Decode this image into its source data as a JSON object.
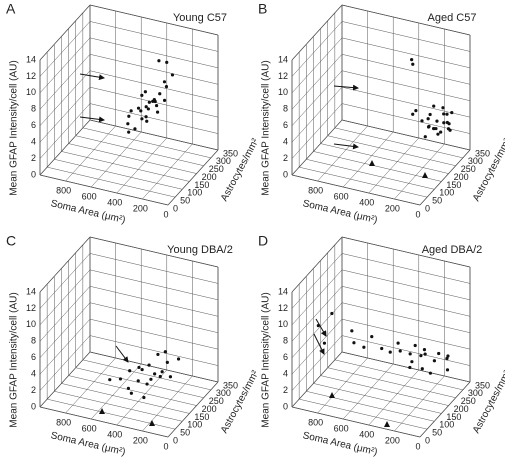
{
  "chart_data": [
    {
      "type": "scatter3d",
      "label": "A",
      "title": "Young C57",
      "xlabel": "Soma Area (μm²)",
      "ylabel": "Astrocytes/mm²",
      "zlabel": "Mean GFAP Intensity/cell (AU)",
      "color": "#111111",
      "xlim": [
        0,
        1000
      ],
      "xticks": [
        0,
        200,
        400,
        600,
        800
      ],
      "ylim": [
        0,
        350
      ],
      "yticks": [
        0,
        50,
        100,
        150,
        200,
        250,
        300,
        350
      ],
      "zlim": [
        0,
        14
      ],
      "zticks": [
        0,
        2,
        4,
        6,
        8,
        10,
        12,
        14
      ],
      "x": [
        350,
        300,
        400,
        320,
        450,
        380,
        300,
        280,
        420,
        360,
        330,
        500,
        260,
        390,
        310,
        440,
        370,
        290,
        410,
        350,
        470,
        340,
        300,
        380,
        430,
        250,
        360
      ],
      "y": [
        250,
        260,
        200,
        180,
        220,
        150,
        120,
        240,
        170,
        140,
        200,
        190,
        160,
        260,
        220,
        120,
        100,
        180,
        230,
        160,
        140,
        280,
        300,
        210,
        110,
        200,
        170
      ],
      "z": [
        11.5,
        11.3,
        8.5,
        8.0,
        7.5,
        7.2,
        6.8,
        8.8,
        7.0,
        6.5,
        7.8,
        6.0,
        7.3,
        6.2,
        8.2,
        6.9,
        6.0,
        7.6,
        5.8,
        6.4,
        5.5,
        8.4,
        9.0,
        7.1,
        5.2,
        8.0,
        7.4
      ]
    },
    {
      "type": "scatter3d",
      "label": "B",
      "title": "Aged C57",
      "xlabel": "Soma Area (μm²)",
      "ylabel": "Astrocytes/mm²",
      "zlabel": "Mean GFAP Intensity/cell (AU)",
      "color": "#111111",
      "xlim": [
        0,
        1000
      ],
      "xticks": [
        0,
        200,
        400,
        600,
        800
      ],
      "ylim": [
        0,
        350
      ],
      "yticks": [
        0,
        50,
        100,
        150,
        200,
        250,
        300,
        350
      ],
      "zlim": [
        0,
        14
      ],
      "zticks": [
        0,
        2,
        4,
        6,
        8,
        10,
        12,
        14
      ],
      "x": [
        400,
        380,
        200,
        150,
        250,
        180,
        220,
        120,
        300,
        160,
        260,
        140,
        200,
        100,
        230,
        170,
        280,
        130,
        210,
        190,
        90,
        240,
        150,
        110,
        260,
        180
      ],
      "y": [
        300,
        290,
        250,
        300,
        320,
        280,
        260,
        330,
        240,
        310,
        290,
        270,
        340,
        300,
        220,
        250,
        200,
        320,
        300,
        230,
        280,
        310,
        260,
        290,
        270,
        350
      ],
      "z": [
        10.5,
        10.2,
        5.5,
        4.8,
        5.0,
        4.2,
        3.8,
        4.5,
        5.8,
        3.5,
        4.0,
        3.2,
        4.6,
        3.0,
        5.2,
        3.9,
        6.2,
        3.3,
        2.8,
        4.4,
        3.6,
        2.5,
        3.1,
        4.1,
        2.2,
        3.7
      ]
    },
    {
      "type": "scatter3d",
      "label": "C",
      "title": "Young DBA/2",
      "xlabel": "Soma Area (μm²)",
      "ylabel": "Astrocytes/mm²",
      "zlabel": "Mean GFAP Intensity/cell (AU)",
      "color": "#111111",
      "xlim": [
        0,
        1000
      ],
      "xticks": [
        0,
        200,
        400,
        600,
        800
      ],
      "ylim": [
        0,
        350
      ],
      "yticks": [
        0,
        50,
        100,
        150,
        200,
        250,
        300,
        350
      ],
      "zlim": [
        0,
        14
      ],
      "zticks": [
        0,
        2,
        4,
        6,
        8,
        10,
        12,
        14
      ],
      "x": [
        300,
        450,
        400,
        350,
        500,
        300,
        250,
        550,
        380,
        420,
        320,
        280,
        470,
        360,
        600,
        340,
        260,
        410,
        390,
        230
      ],
      "y": [
        250,
        200,
        150,
        220,
        180,
        100,
        170,
        160,
        270,
        120,
        140,
        210,
        240,
        190,
        130,
        300,
        250,
        90,
        230,
        280
      ],
      "z": [
        4.5,
        3.0,
        2.5,
        2.2,
        2.8,
        1.8,
        3.2,
        2.0,
        3.5,
        1.5,
        2.6,
        2.9,
        1.9,
        3.8,
        2.3,
        2.1,
        1.6,
        2.7,
        1.2,
        3.3
      ]
    },
    {
      "type": "scatter3d",
      "label": "D",
      "title": "Aged DBA/2",
      "xlabel": "Soma Area (μm²)",
      "ylabel": "Astrocytes/mm²",
      "zlabel": "Mean GFAP Intensity/cell (AU)",
      "color": "#111111",
      "xlim": [
        0,
        1000
      ],
      "xticks": [
        0,
        200,
        400,
        600,
        800
      ],
      "ylim": [
        0,
        350
      ],
      "yticks": [
        0,
        50,
        100,
        150,
        200,
        250,
        300,
        350
      ],
      "zlim": [
        0,
        14
      ],
      "zticks": [
        0,
        2,
        4,
        6,
        8,
        10,
        12,
        14
      ],
      "x": [
        850,
        800,
        780,
        700,
        650,
        600,
        500,
        450,
        400,
        350,
        300,
        250,
        200,
        150,
        400,
        300,
        250,
        200,
        550,
        350,
        180,
        120,
        280,
        320,
        220
      ],
      "y": [
        50,
        100,
        30,
        150,
        120,
        200,
        180,
        250,
        220,
        280,
        300,
        260,
        310,
        330,
        150,
        200,
        240,
        280,
        100,
        320,
        350,
        300,
        180,
        230,
        270
      ],
      "z": [
        9.5,
        10.2,
        8.0,
        7.5,
        6.8,
        6.2,
        5.5,
        5.0,
        4.8,
        4.5,
        3.8,
        4.2,
        3.5,
        3.0,
        6.0,
        5.2,
        2.8,
        3.2,
        7.0,
        2.5,
        2.2,
        2.0,
        4.0,
        3.6,
        1.8
      ]
    }
  ]
}
